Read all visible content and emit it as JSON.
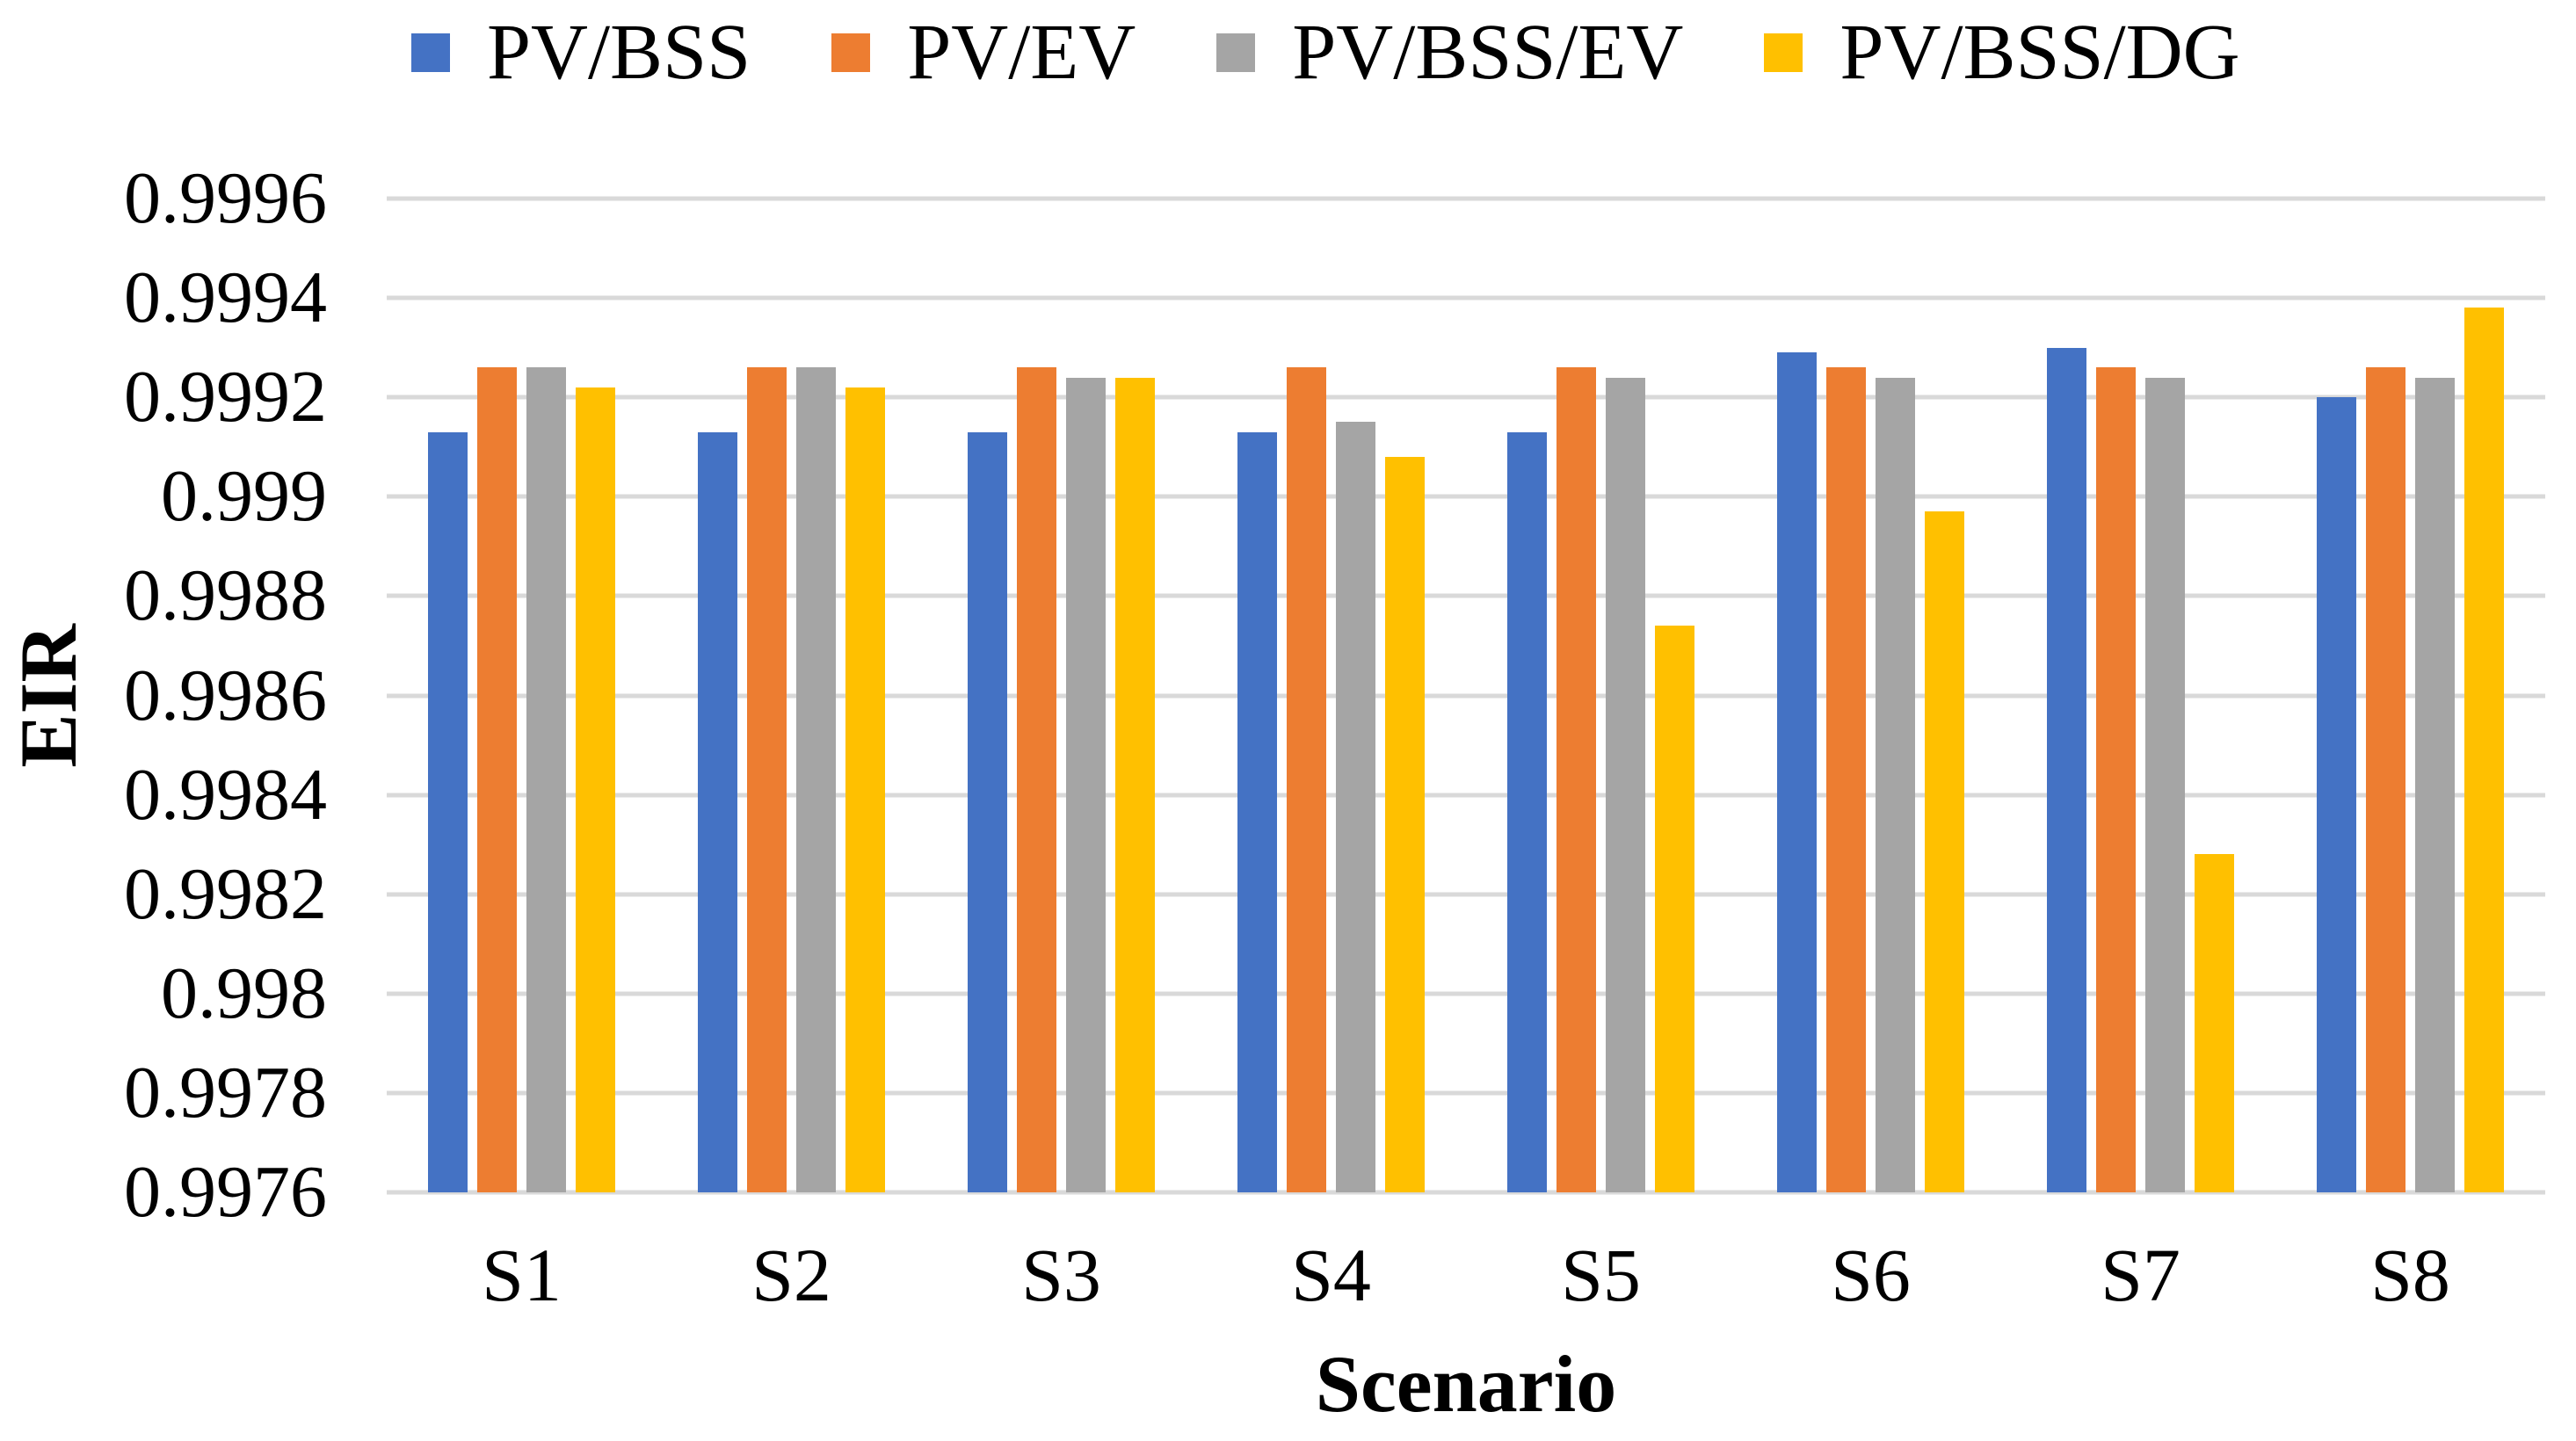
{
  "chart_data": {
    "type": "bar",
    "title": "",
    "xlabel": "Scenario",
    "ylabel": "EIR",
    "categories": [
      "S1",
      "S2",
      "S3",
      "S4",
      "S5",
      "S6",
      "S7",
      "S8"
    ],
    "series": [
      {
        "name": "PV/BSS",
        "color": "#4472C4",
        "values": [
          0.99913,
          0.99913,
          0.99913,
          0.99913,
          0.99913,
          0.99929,
          0.9993,
          0.9992
        ]
      },
      {
        "name": "PV/EV",
        "color": "#ED7D31",
        "values": [
          0.99926,
          0.99926,
          0.99926,
          0.99926,
          0.99926,
          0.99926,
          0.99926,
          0.99926
        ]
      },
      {
        "name": "PV/BSS/EV",
        "color": "#A5A5A5",
        "values": [
          0.99926,
          0.99926,
          0.99924,
          0.99915,
          0.99924,
          0.99924,
          0.99924,
          0.99924
        ]
      },
      {
        "name": "PV/BSS/DG",
        "color": "#FFC000",
        "values": [
          0.99922,
          0.99922,
          0.99924,
          0.99908,
          0.99874,
          0.99897,
          0.99828,
          0.99938
        ]
      }
    ],
    "ylim": [
      0.9976,
      0.9996
    ],
    "ytick_step": 0.0002,
    "ytick_labels": [
      "0.9996",
      "0.9994",
      "0.9992",
      "0.999",
      "0.9988",
      "0.9986",
      "0.9984",
      "0.9982",
      "0.998",
      "0.9978",
      "0.9976"
    ],
    "grid": true,
    "legend_position": "top",
    "gridline_color": "#D9D9D9",
    "background_color": "#FFFFFF",
    "text_color": "#000000"
  }
}
